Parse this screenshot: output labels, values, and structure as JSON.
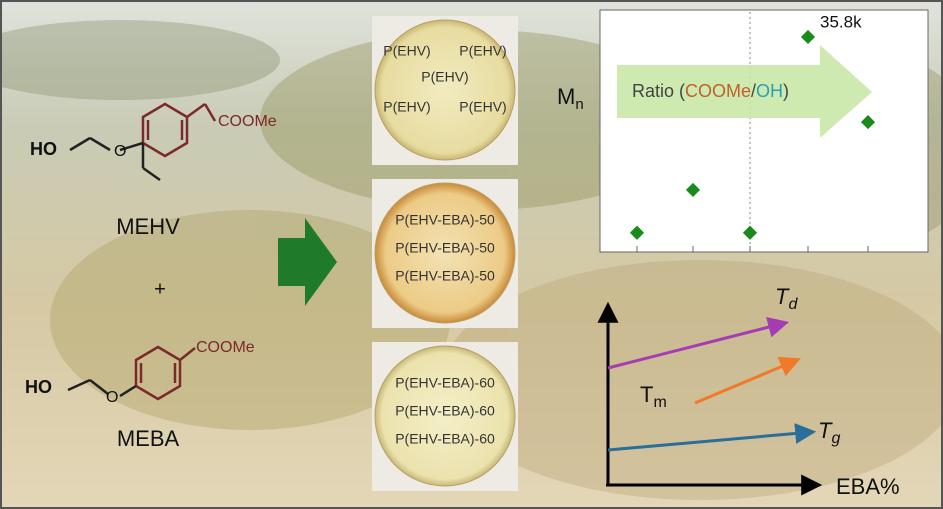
{
  "molecules": [
    {
      "hydroxyl": "HO",
      "ester": "COOMe",
      "name": "MEHV"
    },
    {
      "hydroxyl": "HO",
      "ester": "COOMe",
      "name": "MEBA"
    }
  ],
  "plus": "+",
  "films": [
    {
      "labels": [
        "P(EHV)",
        "P(EHV)",
        "P(EHV)",
        "P(EHV)",
        "P(EHV)"
      ]
    },
    {
      "labels": [
        "P(EHV-EBA)-50",
        "P(EHV-EBA)-50",
        "P(EHV-EBA)-50"
      ]
    },
    {
      "labels": [
        "P(EHV-EBA)-60",
        "P(EHV-EBA)-60",
        "P(EHV-EBA)-60"
      ]
    }
  ],
  "chart_data": {
    "type": "scatter",
    "y_label": "M",
    "y_label_sub": "n",
    "arrow_label": {
      "prefix": "Ratio (",
      "a": "COOMe",
      "sep": "/",
      "b": "OH",
      "suffix": ")"
    },
    "categories": [
      null,
      null,
      null,
      null,
      null
    ],
    "values": [
      2.9,
      10.1,
      2.9,
      35.8,
      21.5
    ],
    "value_labels": [
      null,
      null,
      null,
      "35.8k",
      null
    ],
    "ylim": [
      0,
      40
    ],
    "color": "#1a8a1a"
  },
  "thermal": {
    "x_label": "EBA%",
    "lines": [
      {
        "name": "T",
        "sub": "d",
        "color": "#a63cb3"
      },
      {
        "name": "T",
        "sub": "m",
        "color": "#f07a2a"
      },
      {
        "name": "T",
        "sub": "g",
        "color": "#2a6e99"
      }
    ]
  }
}
